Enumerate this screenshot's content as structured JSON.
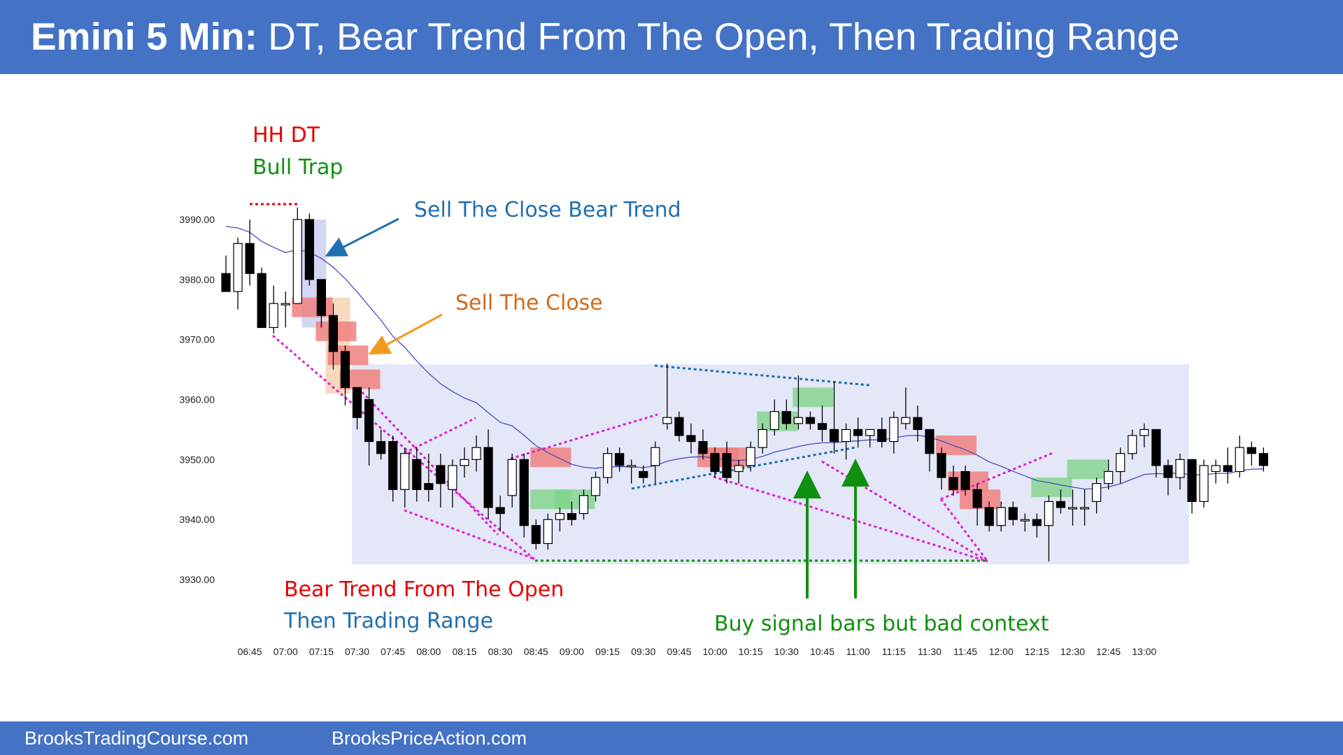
{
  "header": {
    "title_bold": "Emini 5 Min:",
    "title_rest": " DT, Bear Trend From The Open, Then Trading Range"
  },
  "footer": {
    "left": "BrooksTradingCourse.com",
    "right": "BrooksPriceAction.com"
  },
  "annotations": {
    "hh_dt": "HH DT",
    "bull_trap": "Bull Trap",
    "sell_close_bear": "Sell The Close Bear Trend",
    "sell_close": "Sell The Close",
    "bear_trend_open": "Bear Trend From The Open",
    "then_range": "Then Trading Range",
    "buy_signal": "Buy signal bars but bad context"
  },
  "colors": {
    "header": "#4472c4",
    "red_text": "#e60000",
    "green_text": "#109010",
    "blue_text": "#1f6fb2",
    "orange_text": "#d06a1a",
    "magenta": "#e020d0",
    "ema": "#4a4ac0",
    "range_box": "#e3e7f7"
  },
  "chart_data": {
    "type": "candlestick",
    "x_tick_labels": [
      "06:45",
      "07:00",
      "07:15",
      "07:30",
      "07:45",
      "08:00",
      "08:15",
      "08:30",
      "08:45",
      "09:00",
      "09:15",
      "09:30",
      "09:45",
      "10:00",
      "10:15",
      "10:30",
      "10:45",
      "11:00",
      "11:15",
      "11:30",
      "11:45",
      "12:00",
      "12:15",
      "12:30",
      "12:45",
      "13:00"
    ],
    "y_tick_labels": [
      "3990.00",
      "3980.00",
      "3970.00",
      "3960.00",
      "3950.00",
      "3940.00",
      "3930.00"
    ],
    "ylim": [
      3930,
      3990
    ],
    "candles": [
      {
        "o": 3981,
        "h": 3984,
        "l": 3978,
        "c": 3978
      },
      {
        "o": 3978,
        "h": 3987,
        "l": 3975,
        "c": 3986
      },
      {
        "o": 3986,
        "h": 3990,
        "l": 3979,
        "c": 3981
      },
      {
        "o": 3981,
        "h": 3982,
        "l": 3972,
        "c": 3972
      },
      {
        "o": 3972,
        "h": 3979,
        "l": 3971,
        "c": 3976
      },
      {
        "o": 3976,
        "h": 3978,
        "l": 3972,
        "c": 3976
      },
      {
        "o": 3976,
        "h": 3992,
        "l": 3976,
        "c": 3990
      },
      {
        "o": 3990,
        "h": 3991,
        "l": 3979,
        "c": 3980
      },
      {
        "o": 3980,
        "h": 3980,
        "l": 3972,
        "c": 3974
      },
      {
        "o": 3974,
        "h": 3976,
        "l": 3965,
        "c": 3968
      },
      {
        "o": 3968,
        "h": 3969,
        "l": 3959,
        "c": 3962
      },
      {
        "o": 3962,
        "h": 3962,
        "l": 3955,
        "c": 3957
      },
      {
        "o": 3960,
        "h": 3962,
        "l": 3949,
        "c": 3953
      },
      {
        "o": 3953,
        "h": 3955,
        "l": 3950,
        "c": 3951
      },
      {
        "o": 3953,
        "h": 3954,
        "l": 3943,
        "c": 3945
      },
      {
        "o": 3945,
        "h": 3952,
        "l": 3942,
        "c": 3951
      },
      {
        "o": 3950,
        "h": 3952,
        "l": 3943,
        "c": 3945
      },
      {
        "o": 3946,
        "h": 3951,
        "l": 3943,
        "c": 3945
      },
      {
        "o": 3949,
        "h": 3951,
        "l": 3942,
        "c": 3946
      },
      {
        "o": 3945,
        "h": 3950,
        "l": 3942,
        "c": 3949
      },
      {
        "o": 3949,
        "h": 3952,
        "l": 3947,
        "c": 3950
      },
      {
        "o": 3950,
        "h": 3954,
        "l": 3948,
        "c": 3952
      },
      {
        "o": 3952,
        "h": 3955,
        "l": 3940,
        "c": 3942
      },
      {
        "o": 3942,
        "h": 3944,
        "l": 3938,
        "c": 3941
      },
      {
        "o": 3944,
        "h": 3951,
        "l": 3942,
        "c": 3950
      },
      {
        "o": 3950,
        "h": 3951,
        "l": 3937,
        "c": 3939
      },
      {
        "o": 3939,
        "h": 3940,
        "l": 3935,
        "c": 3936
      },
      {
        "o": 3936,
        "h": 3941,
        "l": 3935,
        "c": 3940
      },
      {
        "o": 3940,
        "h": 3942,
        "l": 3938,
        "c": 3941
      },
      {
        "o": 3941,
        "h": 3943,
        "l": 3939,
        "c": 3940
      },
      {
        "o": 3941,
        "h": 3945,
        "l": 3940,
        "c": 3944
      },
      {
        "o": 3944,
        "h": 3948,
        "l": 3943,
        "c": 3947
      },
      {
        "o": 3947,
        "h": 3952,
        "l": 3946,
        "c": 3951
      },
      {
        "o": 3951,
        "h": 3952,
        "l": 3948,
        "c": 3949
      },
      {
        "o": 3949,
        "h": 3950,
        "l": 3946,
        "c": 3949
      },
      {
        "o": 3948,
        "h": 3949,
        "l": 3946,
        "c": 3947
      },
      {
        "o": 3949,
        "h": 3953,
        "l": 3946,
        "c": 3952
      },
      {
        "o": 3956,
        "h": 3966,
        "l": 3955,
        "c": 3957
      },
      {
        "o": 3957,
        "h": 3958,
        "l": 3953,
        "c": 3954
      },
      {
        "o": 3954,
        "h": 3956,
        "l": 3951,
        "c": 3953
      },
      {
        "o": 3953,
        "h": 3955,
        "l": 3950,
        "c": 3951
      },
      {
        "o": 3951,
        "h": 3952,
        "l": 3947,
        "c": 3948
      },
      {
        "o": 3951,
        "h": 3953,
        "l": 3946,
        "c": 3947
      },
      {
        "o": 3948,
        "h": 3950,
        "l": 3946,
        "c": 3949
      },
      {
        "o": 3949,
        "h": 3953,
        "l": 3948,
        "c": 3952
      },
      {
        "o": 3952,
        "h": 3956,
        "l": 3951,
        "c": 3955
      },
      {
        "o": 3955,
        "h": 3960,
        "l": 3954,
        "c": 3958
      },
      {
        "o": 3958,
        "h": 3960,
        "l": 3955,
        "c": 3956
      },
      {
        "o": 3956,
        "h": 3964,
        "l": 3955,
        "c": 3957
      },
      {
        "o": 3957,
        "h": 3958,
        "l": 3955,
        "c": 3956
      },
      {
        "o": 3956,
        "h": 3959,
        "l": 3953,
        "c": 3955
      },
      {
        "o": 3955,
        "h": 3963,
        "l": 3951,
        "c": 3953
      },
      {
        "o": 3953,
        "h": 3956,
        "l": 3950,
        "c": 3955
      },
      {
        "o": 3955,
        "h": 3957,
        "l": 3952,
        "c": 3954
      },
      {
        "o": 3954,
        "h": 3955,
        "l": 3952,
        "c": 3955
      },
      {
        "o": 3955,
        "h": 3957,
        "l": 3952,
        "c": 3953
      },
      {
        "o": 3953,
        "h": 3958,
        "l": 3951,
        "c": 3957
      },
      {
        "o": 3956,
        "h": 3962,
        "l": 3955,
        "c": 3957
      },
      {
        "o": 3957,
        "h": 3959,
        "l": 3953,
        "c": 3955
      },
      {
        "o": 3955,
        "h": 3955,
        "l": 3948,
        "c": 3951
      },
      {
        "o": 3951,
        "h": 3952,
        "l": 3945,
        "c": 3947
      },
      {
        "o": 3947,
        "h": 3949,
        "l": 3944,
        "c": 3945
      },
      {
        "o": 3948,
        "h": 3949,
        "l": 3944,
        "c": 3945
      },
      {
        "o": 3945,
        "h": 3946,
        "l": 3939,
        "c": 3942
      },
      {
        "o": 3942,
        "h": 3943,
        "l": 3938,
        "c": 3939
      },
      {
        "o": 3939,
        "h": 3943,
        "l": 3938,
        "c": 3942
      },
      {
        "o": 3942,
        "h": 3943,
        "l": 3939,
        "c": 3940
      },
      {
        "o": 3940,
        "h": 3941,
        "l": 3938,
        "c": 3940
      },
      {
        "o": 3940,
        "h": 3941,
        "l": 3937,
        "c": 3939
      },
      {
        "o": 3939,
        "h": 3944,
        "l": 3933,
        "c": 3943
      },
      {
        "o": 3943,
        "h": 3945,
        "l": 3941,
        "c": 3942
      },
      {
        "o": 3942,
        "h": 3945,
        "l": 3939,
        "c": 3942
      },
      {
        "o": 3942,
        "h": 3945,
        "l": 3939,
        "c": 3942
      },
      {
        "o": 3943,
        "h": 3947,
        "l": 3941,
        "c": 3946
      },
      {
        "o": 3946,
        "h": 3950,
        "l": 3945,
        "c": 3948
      },
      {
        "o": 3948,
        "h": 3952,
        "l": 3946,
        "c": 3951
      },
      {
        "o": 3951,
        "h": 3955,
        "l": 3950,
        "c": 3954
      },
      {
        "o": 3954,
        "h": 3956,
        "l": 3952,
        "c": 3955
      },
      {
        "o": 3955,
        "h": 3955,
        "l": 3947,
        "c": 3949
      },
      {
        "o": 3949,
        "h": 3950,
        "l": 3944,
        "c": 3947
      },
      {
        "o": 3947,
        "h": 3951,
        "l": 3945,
        "c": 3950
      },
      {
        "o": 3950,
        "h": 3950,
        "l": 3941,
        "c": 3943
      },
      {
        "o": 3943,
        "h": 3950,
        "l": 3942,
        "c": 3949
      },
      {
        "o": 3948,
        "h": 3950,
        "l": 3946,
        "c": 3949
      },
      {
        "o": 3949,
        "h": 3952,
        "l": 3946,
        "c": 3948
      },
      {
        "o": 3948,
        "h": 3954,
        "l": 3947,
        "c": 3952
      },
      {
        "o": 3952,
        "h": 3953,
        "l": 3949,
        "c": 3951
      },
      {
        "o": 3951,
        "h": 3952,
        "l": 3948,
        "c": 3949
      }
    ]
  }
}
